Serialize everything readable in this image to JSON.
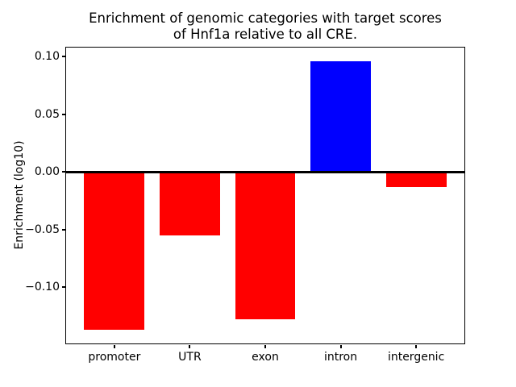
{
  "chart_data": {
    "type": "bar",
    "title": "Enrichment of genomic categories with target scores of Hnf1a relative to all CRE.",
    "title_lines": [
      "Enrichment of genomic categories with target scores",
      "of Hnf1a relative to all CRE."
    ],
    "categories": [
      "promoter",
      "UTR",
      "exon",
      "intron",
      "intergenic"
    ],
    "values": [
      -0.137,
      -0.055,
      -0.128,
      0.096,
      -0.013
    ],
    "bar_colors": [
      "#ff0000",
      "#ff0000",
      "#ff0000",
      "#0000ff",
      "#ff0000"
    ],
    "negative_color": "#ff0000",
    "positive_color": "#0000ff",
    "xlabel": "",
    "ylabel": "Enrichment (log10)",
    "yticks": [
      0.1,
      0.05,
      0.0,
      -0.05,
      -0.1
    ],
    "ytick_labels": [
      "0.10",
      "0.05",
      "0.00",
      "−0.05",
      "−0.10"
    ],
    "ylim": [
      -0.1487,
      0.1077
    ],
    "xlim": [
      -0.64,
      4.64
    ],
    "bar_width": 0.8,
    "zero_line": true,
    "grid": false,
    "legend": false
  }
}
